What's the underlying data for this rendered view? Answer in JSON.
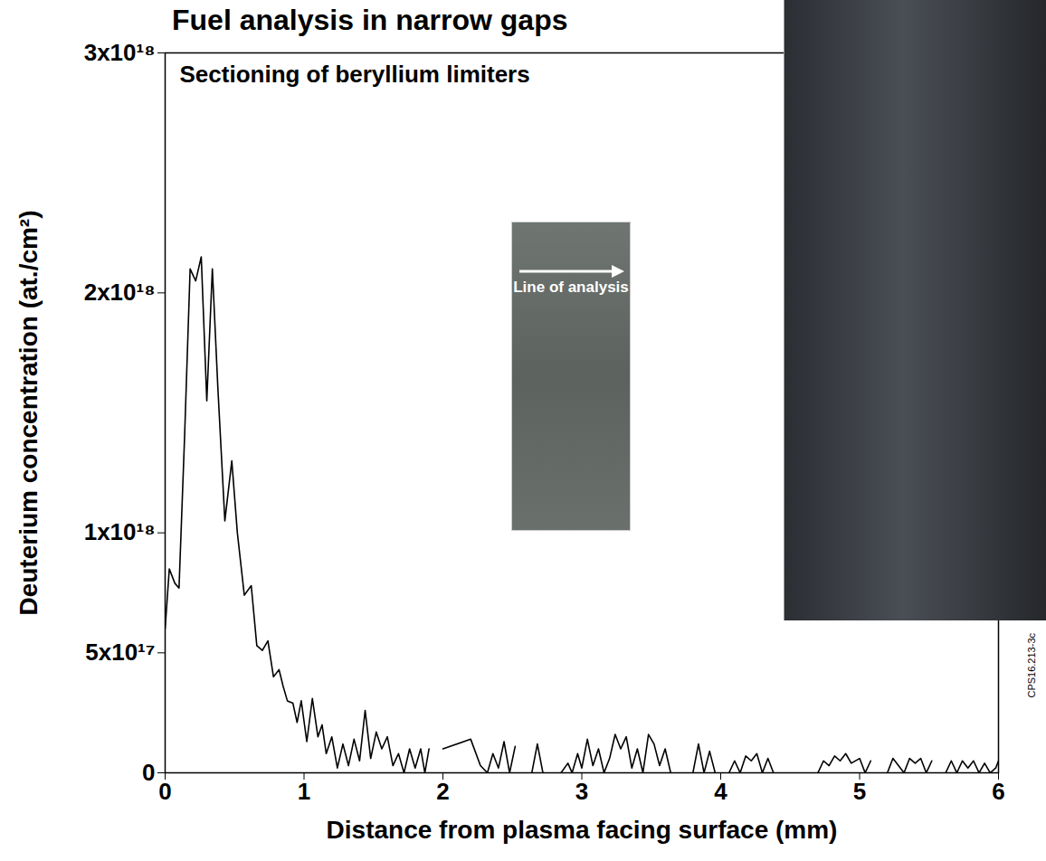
{
  "chart_data": {
    "type": "line",
    "title": "Fuel analysis in narrow gaps",
    "subtitle": "Sectioning of beryllium limiters",
    "x_label": "Distance from plasma facing surface (mm)",
    "y_label": "Deuterium concentration (at./cm²)",
    "annotations": [
      "Line of analysis",
      "CPS16.213-3c"
    ],
    "color": "#000000",
    "xlim": [
      0,
      6
    ],
    "xticks": [
      0,
      1,
      2,
      3,
      4,
      5,
      6
    ],
    "ylim": [
      0,
      3e+18
    ],
    "yticks": [
      0,
      {
        "value": 5e+17,
        "label": "5x10¹⁷"
      },
      {
        "value": 1e+18,
        "label": "1x10¹⁸"
      },
      {
        "value": 2e+18,
        "label": "2x10¹⁸"
      },
      {
        "value": 3e+18,
        "label": "3x10¹⁸"
      }
    ],
    "grid": false,
    "x": [
      0,
      0.03,
      0.07,
      0.1,
      0.14,
      0.18,
      0.22,
      0.26,
      0.3,
      0.34,
      0.38,
      0.43,
      0.48,
      0.52,
      0.57,
      0.62,
      0.66,
      0.7,
      0.74,
      0.78,
      0.82,
      0.85,
      0.88,
      0.92,
      0.95,
      0.98,
      1.02,
      1.06,
      1.1,
      1.13,
      1.16,
      1.2,
      1.24,
      1.28,
      1.32,
      1.36,
      1.4,
      1.44,
      1.48,
      1.52,
      1.56,
      1.6,
      1.64,
      1.68,
      1.72,
      1.76,
      1.8,
      1.84,
      1.87,
      1.9,
      1.93,
      2.0,
      2.2,
      2.27,
      2.32,
      2.36,
      2.4,
      2.44,
      2.48,
      2.52,
      2.56,
      2.64,
      2.68,
      2.72,
      2.76,
      2.85,
      2.9,
      2.93,
      2.97,
      3.0,
      3.04,
      3.08,
      3.12,
      3.16,
      3.2,
      3.24,
      3.28,
      3.32,
      3.36,
      3.4,
      3.44,
      3.48,
      3.52,
      3.56,
      3.6,
      3.64,
      3.68,
      3.8,
      3.84,
      3.88,
      3.92,
      3.96,
      4.0,
      4.06,
      4.1,
      4.14,
      4.18,
      4.22,
      4.26,
      4.3,
      4.34,
      4.38,
      4.42,
      4.7,
      4.74,
      4.78,
      4.82,
      4.86,
      4.9,
      4.94,
      5.0,
      5.04,
      5.08,
      5.12,
      5.2,
      5.24,
      5.28,
      5.32,
      5.36,
      5.4,
      5.44,
      5.48,
      5.52,
      5.56,
      5.62,
      5.66,
      5.7,
      5.74,
      5.78,
      5.82,
      5.86,
      5.9,
      5.94,
      5.98,
      6.0
    ],
    "values": [
      6e+17,
      8.5e+17,
      7.9e+17,
      7.7e+17,
      1.4e+18,
      2.1e+18,
      2.05e+18,
      2.15e+18,
      1.55e+18,
      2.1e+18,
      1.6e+18,
      1.05e+18,
      1.3e+18,
      1e+18,
      7.4e+17,
      7.8e+17,
      5.3e+17,
      5.1e+17,
      5.5e+17,
      4e+17,
      4.3e+17,
      3.6e+17,
      3e+17,
      2.9e+17,
      2.1e+17,
      3e+17,
      1.3e+17,
      3.1e+17,
      1.5e+17,
      2e+17,
      8e+16,
      1.5e+17,
      2e+16,
      1.2e+17,
      3e+16,
      1.4e+17,
      5e+16,
      2.6e+17,
      6e+16,
      1.7e+17,
      1e+17,
      1.5e+17,
      3e+16,
      8e+16,
      0,
      1e+17,
      2e+16,
      1e+17,
      0,
      1e+17,
      null,
      1e+17,
      1.4e+17,
      3e+16,
      0,
      8e+16,
      2e+16,
      1.3e+17,
      0,
      1.1e+17,
      null,
      0,
      1.2e+17,
      0,
      null,
      0,
      4e+16,
      0,
      8e+16,
      2e+16,
      1.4e+17,
      3e+16,
      1e+17,
      0,
      6e+16,
      1.6e+17,
      1e+17,
      1.5e+17,
      2e+16,
      1e+17,
      0,
      1.6e+17,
      1.2e+17,
      3e+16,
      1e+17,
      0,
      null,
      0,
      1.2e+17,
      0,
      9e+16,
      0,
      null,
      0,
      5e+16,
      0,
      7e+16,
      5e+16,
      8e+16,
      0,
      6e+16,
      0,
      null,
      0,
      5e+16,
      3e+16,
      7e+16,
      5e+16,
      8e+16,
      4e+16,
      6e+16,
      0,
      5e+16,
      null,
      0,
      6e+16,
      3e+16,
      0,
      6e+16,
      4e+16,
      6e+16,
      0,
      5e+16,
      null,
      0,
      5e+16,
      0,
      5e+16,
      2e+16,
      5e+16,
      0,
      4e+16,
      0,
      2e+16,
      5e+16
    ]
  }
}
